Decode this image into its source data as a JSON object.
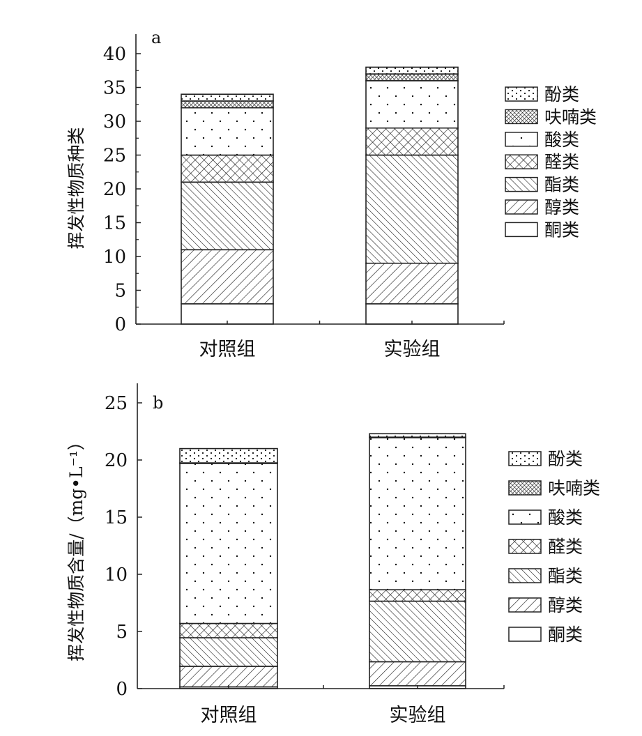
{
  "chart_data": [
    {
      "type": "bar",
      "stacked": true,
      "panel_label": "a",
      "ylabel": "挥发性物质种类",
      "xlabel": "",
      "ylim": [
        0,
        40
      ],
      "yticks": [
        0,
        5,
        10,
        15,
        20,
        25,
        30,
        35,
        40
      ],
      "categories": [
        "对照组",
        "实验组"
      ],
      "legend_position": "right",
      "series": [
        {
          "name": "酮类",
          "pattern": "blank",
          "values": [
            3,
            3
          ]
        },
        {
          "name": "醇类",
          "pattern": "forward-diagonal",
          "values": [
            8,
            6
          ]
        },
        {
          "name": "酯类",
          "pattern": "back-diagonal",
          "values": [
            10,
            16
          ]
        },
        {
          "name": "醛类",
          "pattern": "crosshatch",
          "values": [
            4,
            4
          ]
        },
        {
          "name": "酸类",
          "pattern": "sparse-dots",
          "values": [
            7,
            7
          ]
        },
        {
          "name": "呋喃类",
          "pattern": "dense-crosshatch",
          "values": [
            1,
            1
          ]
        },
        {
          "name": "酚类",
          "pattern": "dense-dots",
          "values": [
            1,
            1
          ]
        }
      ]
    },
    {
      "type": "bar",
      "stacked": true,
      "panel_label": "b",
      "ylabel": "挥发性物质含量/（mg•L⁻¹）",
      "xlabel": "",
      "ylim": [
        0,
        25
      ],
      "yticks": [
        0,
        5,
        10,
        15,
        20,
        25
      ],
      "categories": [
        "对照组",
        "实验组"
      ],
      "legend_position": "right",
      "series": [
        {
          "name": "酮类",
          "pattern": "blank",
          "values": [
            0.15,
            0.25
          ]
        },
        {
          "name": "醇类",
          "pattern": "forward-diagonal",
          "values": [
            1.8,
            2.1
          ]
        },
        {
          "name": "酯类",
          "pattern": "back-diagonal",
          "values": [
            2.5,
            5.3
          ]
        },
        {
          "name": "醛类",
          "pattern": "crosshatch",
          "values": [
            1.25,
            1.0
          ]
        },
        {
          "name": "酸类",
          "pattern": "sparse-dots",
          "values": [
            14.0,
            13.3
          ]
        },
        {
          "name": "呋喃类",
          "pattern": "dense-crosshatch",
          "values": [
            0.05,
            0.05
          ]
        },
        {
          "name": "酚类",
          "pattern": "dense-dots",
          "values": [
            1.25,
            0.3
          ]
        }
      ]
    }
  ]
}
